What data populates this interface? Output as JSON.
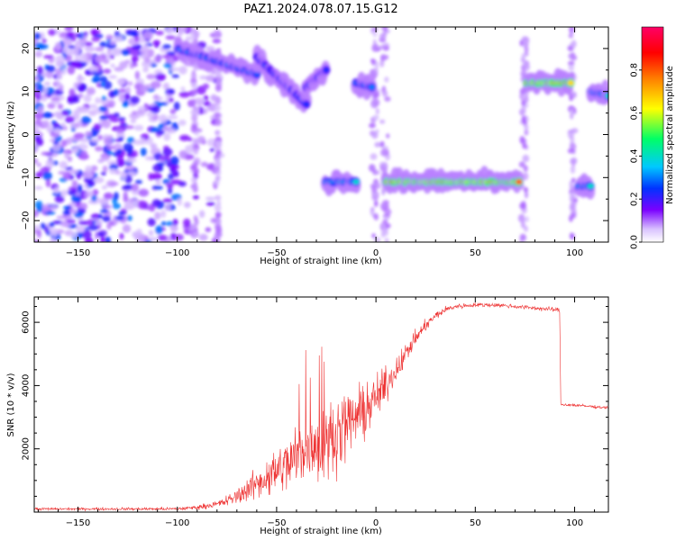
{
  "title": "PAZ1.2024.078.07.15.G12",
  "chart_data": [
    {
      "type": "heatmap",
      "xlabel": "Height of straight line (km)",
      "ylabel": "Frequency (Hz)",
      "xlim": [
        -172,
        117
      ],
      "ylim": [
        -25,
        25
      ],
      "xticks": [
        -150,
        -100,
        -50,
        0,
        50,
        100
      ],
      "yticks": [
        -20,
        -10,
        0,
        10,
        20
      ],
      "colorbar": {
        "label": "Normalized spectral amplitude",
        "range": [
          0,
          1
        ],
        "ticks": [
          0.0,
          0.2,
          0.4,
          0.6,
          0.8
        ],
        "colormap": [
          "#ffffff",
          "#7a00ff",
          "#0033ff",
          "#00c8ff",
          "#00ff66",
          "#ffff00",
          "#ff8800",
          "#ff0000",
          "#ff0066"
        ]
      },
      "features": [
        {
          "x": [
            -100,
            -60
          ],
          "y_start": 20,
          "y_end": 14,
          "amplitude": 0.35
        },
        {
          "x": [
            -60,
            -35
          ],
          "y_start": 18,
          "y_end": 7,
          "amplitude": 0.3
        },
        {
          "x": [
            -35,
            -25
          ],
          "y_start": 11,
          "y_end": 15,
          "amplitude": 0.3
        },
        {
          "x": [
            -10,
            -2
          ],
          "y_start": 12,
          "y_end": 11,
          "amplitude": 0.35
        },
        {
          "x": [
            -25,
            -10
          ],
          "y_start": -11,
          "y_end": -11,
          "amplitude": 0.4
        },
        {
          "x": [
            5,
            72
          ],
          "y_start": -11,
          "y_end": -11,
          "amplitude": 0.8
        },
        {
          "x": [
            76,
            98
          ],
          "y_start": 12,
          "y_end": 12,
          "amplitude": 0.8
        },
        {
          "x": [
            102,
            108
          ],
          "y_start": -12,
          "y_end": -12,
          "amplitude": 0.4
        },
        {
          "x": [
            108,
            117
          ],
          "y_start": 10,
          "y_end": 9,
          "amplitude": 0.4
        }
      ],
      "noise_region_x": [
        -172,
        -78
      ]
    },
    {
      "type": "line",
      "xlabel": "Height of straight line (km)",
      "ylabel": "SNR (10 * v/v)",
      "xlim": [
        -172,
        117
      ],
      "ylim": [
        0,
        6800
      ],
      "xticks": [
        -150,
        -100,
        -50,
        0,
        50,
        100
      ],
      "yticks": [
        2000,
        4000,
        6000
      ],
      "series": [
        {
          "color": "#ee3333",
          "profile_x": [
            -172,
            -130,
            -100,
            -90,
            -80,
            -75,
            -70,
            -65,
            -60,
            -55,
            -50,
            -45,
            -40,
            -35,
            -30,
            -25,
            -20,
            -15,
            -10,
            -5,
            0,
            5,
            10,
            15,
            20,
            25,
            30,
            35,
            40,
            50,
            60,
            70,
            80,
            90,
            92.5,
            93,
            95,
            100,
            110,
            117
          ],
          "profile_mean": [
            100,
            100,
            100,
            150,
            250,
            350,
            500,
            700,
            900,
            1100,
            1300,
            1500,
            1700,
            1900,
            2100,
            2300,
            2500,
            2750,
            3000,
            3250,
            3600,
            4000,
            4500,
            5000,
            5500,
            5900,
            6200,
            6400,
            6500,
            6550,
            6550,
            6500,
            6450,
            6400,
            6380,
            3400,
            3400,
            3380,
            3330,
            3300
          ],
          "profile_noise": [
            60,
            60,
            70,
            100,
            150,
            250,
            350,
            500,
            700,
            900,
            1100,
            1300,
            1500,
            1700,
            1800,
            1700,
            1600,
            1500,
            1400,
            1200,
            1000,
            800,
            600,
            450,
            350,
            250,
            200,
            150,
            120,
            100,
            100,
            100,
            100,
            100,
            100,
            80,
            80,
            70,
            60,
            60
          ]
        }
      ]
    }
  ]
}
